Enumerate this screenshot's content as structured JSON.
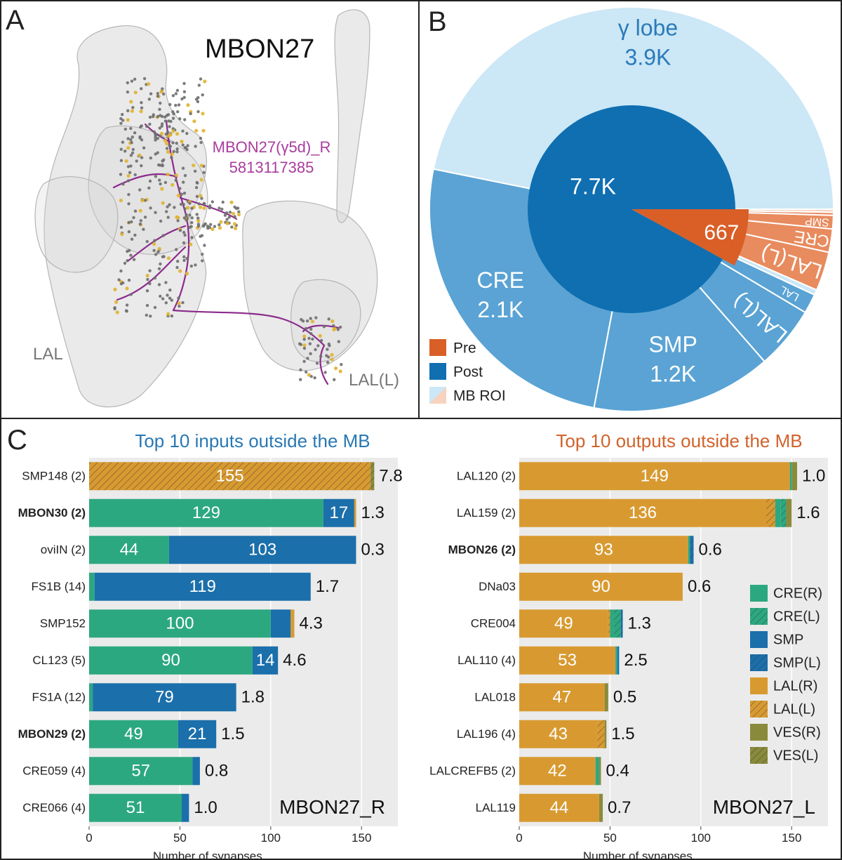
{
  "panel_a": {
    "label": "A",
    "title": "MBON27",
    "neuron_name": "MBON27(γ5d)_R",
    "neuron_id": "5813117385",
    "region_left": "LAL",
    "region_right": "LAL(L)"
  },
  "panel_b": {
    "label": "B",
    "legend": [
      {
        "name": "Pre",
        "color": "#d95f27"
      },
      {
        "name": "Post",
        "color": "#0f6fb1"
      },
      {
        "name": "MB ROI",
        "color": "#cce7f6"
      }
    ]
  },
  "panel_c": {
    "label": "C"
  },
  "chart_data": [
    {
      "type": "pie",
      "inner": [
        {
          "label": "7.7K",
          "value": 7700,
          "color": "#0f6fb1"
        },
        {
          "label": "667",
          "value": 667,
          "color": "#d95f27"
        }
      ],
      "outer": [
        {
          "name": "γ lobe",
          "label": "3.9K",
          "value": 3900,
          "color": "#cce7f6"
        },
        {
          "name": "CRE",
          "label": "2.1K",
          "value": 2100,
          "color": "#5aa3d4"
        },
        {
          "name": "SMP",
          "label": "1.2K",
          "value": 1200,
          "color": "#5aa3d4"
        },
        {
          "name": "LAL(L)",
          "label": "",
          "value": 420,
          "color": "#5aa3d4"
        },
        {
          "name": "LAL",
          "label": "",
          "value": 130,
          "color": "#5aa3d4"
        },
        {
          "name": "",
          "label": "",
          "value": 35,
          "color": "#cce7f6"
        },
        {
          "name": "LAL(L)",
          "label": "",
          "value": 260,
          "color": "#e88b5e"
        },
        {
          "name": "CRE",
          "label": "",
          "value": 155,
          "color": "#e88b5e"
        },
        {
          "name": "SMP",
          "label": "",
          "value": 90,
          "color": "#e88b5e"
        },
        {
          "name": "",
          "label": "",
          "value": 20,
          "color": "#e88b5e"
        },
        {
          "name": "",
          "label": "",
          "value": 20,
          "color": "#f7d3bf"
        }
      ]
    },
    {
      "type": "bar",
      "title": "Top 10 inputs outside the MB",
      "title_color": "#2878b5",
      "corner_label": "MBON27_R",
      "xlabel": "Number of synapses",
      "xlim": [
        0,
        170
      ],
      "xticks": [
        0,
        50,
        100,
        150
      ],
      "rows": [
        {
          "name": "SMP148 (2)",
          "bold": false,
          "right": "7.8",
          "segments": [
            {
              "cat": "LAL(L)",
              "value": 155,
              "label": "155"
            },
            {
              "cat": "VES(L)",
              "value": 2,
              "label": ""
            }
          ]
        },
        {
          "name": "MBON30 (2)",
          "bold": true,
          "right": "1.3",
          "segments": [
            {
              "cat": "CRE(R)",
              "value": 129,
              "label": "129"
            },
            {
              "cat": "SMP",
              "value": 17,
              "label": "17"
            },
            {
              "cat": "LAL(R)",
              "value": 1,
              "label": ""
            }
          ]
        },
        {
          "name": "oviIN (2)",
          "bold": false,
          "right": "0.3",
          "segments": [
            {
              "cat": "CRE(R)",
              "value": 44,
              "label": "44"
            },
            {
              "cat": "SMP",
              "value": 103,
              "label": "103"
            }
          ]
        },
        {
          "name": "FS1B (14)",
          "bold": false,
          "right": "1.7",
          "segments": [
            {
              "cat": "CRE(R)",
              "value": 3,
              "label": ""
            },
            {
              "cat": "SMP",
              "value": 119,
              "label": "119"
            }
          ]
        },
        {
          "name": "SMP152",
          "bold": false,
          "right": "4.3",
          "segments": [
            {
              "cat": "CRE(R)",
              "value": 100,
              "label": "100"
            },
            {
              "cat": "SMP",
              "value": 11,
              "label": ""
            },
            {
              "cat": "LAL(R)",
              "value": 2,
              "label": ""
            }
          ]
        },
        {
          "name": "CL123 (5)",
          "bold": false,
          "right": "4.6",
          "segments": [
            {
              "cat": "CRE(R)",
              "value": 90,
              "label": "90"
            },
            {
              "cat": "SMP",
              "value": 14,
              "label": "14"
            }
          ]
        },
        {
          "name": "FS1A (12)",
          "bold": false,
          "right": "1.8",
          "segments": [
            {
              "cat": "CRE(R)",
              "value": 2,
              "label": ""
            },
            {
              "cat": "SMP",
              "value": 79,
              "label": "79"
            }
          ]
        },
        {
          "name": "MBON29 (2)",
          "bold": true,
          "right": "1.5",
          "segments": [
            {
              "cat": "CRE(R)",
              "value": 49,
              "label": "49"
            },
            {
              "cat": "SMP",
              "value": 21,
              "label": "21"
            }
          ]
        },
        {
          "name": "CRE059 (4)",
          "bold": false,
          "right": "0.8",
          "segments": [
            {
              "cat": "CRE(R)",
              "value": 57,
              "label": "57"
            },
            {
              "cat": "SMP",
              "value": 4,
              "label": ""
            }
          ]
        },
        {
          "name": "CRE066 (4)",
          "bold": false,
          "right": "1.0",
          "segments": [
            {
              "cat": "CRE(R)",
              "value": 51,
              "label": "51"
            },
            {
              "cat": "SMP",
              "value": 4,
              "label": ""
            }
          ]
        }
      ]
    },
    {
      "type": "bar",
      "title": "Top 10 outputs outside the MB",
      "title_color": "#d2622a",
      "corner_label": "MBON27_L",
      "xlabel": "Number of synapses",
      "xlim": [
        0,
        170
      ],
      "xticks": [
        0,
        50,
        100,
        150
      ],
      "rows": [
        {
          "name": "LAL120 (2)",
          "bold": false,
          "right": "1.0",
          "segments": [
            {
              "cat": "LAL(R)",
              "value": 149,
              "label": "149"
            },
            {
              "cat": "CRE(R)",
              "value": 1,
              "label": ""
            },
            {
              "cat": "VES(R)",
              "value": 3,
              "label": ""
            }
          ]
        },
        {
          "name": "LAL159 (2)",
          "bold": false,
          "right": "1.6",
          "segments": [
            {
              "cat": "LAL(R)",
              "value": 136,
              "label": "136"
            },
            {
              "cat": "LAL(L)",
              "value": 5,
              "label": ""
            },
            {
              "cat": "CRE(R)",
              "value": 3,
              "label": ""
            },
            {
              "cat": "CRE(L)",
              "value": 3,
              "label": ""
            },
            {
              "cat": "VES(R)",
              "value": 3,
              "label": ""
            }
          ]
        },
        {
          "name": "MBON26 (2)",
          "bold": true,
          "right": "0.6",
          "segments": [
            {
              "cat": "LAL(R)",
              "value": 93,
              "label": "93"
            },
            {
              "cat": "CRE(R)",
              "value": 1,
              "label": ""
            },
            {
              "cat": "SMP(L)",
              "value": 2,
              "label": ""
            }
          ]
        },
        {
          "name": "DNa03",
          "bold": false,
          "right": "0.6",
          "segments": [
            {
              "cat": "LAL(R)",
              "value": 90,
              "label": "90"
            }
          ]
        },
        {
          "name": "CRE004",
          "bold": false,
          "right": "1.3",
          "segments": [
            {
              "cat": "LAL(R)",
              "value": 49,
              "label": "49"
            },
            {
              "cat": "LAL(L)",
              "value": 1,
              "label": ""
            },
            {
              "cat": "CRE(R)",
              "value": 2,
              "label": ""
            },
            {
              "cat": "CRE(L)",
              "value": 4,
              "label": ""
            },
            {
              "cat": "SMP(L)",
              "value": 1,
              "label": ""
            }
          ]
        },
        {
          "name": "LAL110 (4)",
          "bold": false,
          "right": "2.5",
          "segments": [
            {
              "cat": "LAL(R)",
              "value": 53,
              "label": "53"
            },
            {
              "cat": "CRE(R)",
              "value": 1,
              "label": ""
            },
            {
              "cat": "SMP",
              "value": 1,
              "label": ""
            }
          ]
        },
        {
          "name": "LAL018",
          "bold": false,
          "right": "0.5",
          "segments": [
            {
              "cat": "LAL(R)",
              "value": 47,
              "label": "47"
            },
            {
              "cat": "VES(R)",
              "value": 2,
              "label": ""
            }
          ]
        },
        {
          "name": "LAL196 (4)",
          "bold": false,
          "right": "1.5",
          "segments": [
            {
              "cat": "LAL(R)",
              "value": 43,
              "label": "43"
            },
            {
              "cat": "LAL(L)",
              "value": 4,
              "label": ""
            },
            {
              "cat": "VES(R)",
              "value": 1,
              "label": ""
            }
          ]
        },
        {
          "name": "LALCREFB5 (2)",
          "bold": false,
          "right": "0.4",
          "segments": [
            {
              "cat": "LAL(R)",
              "value": 42,
              "label": "42"
            },
            {
              "cat": "CRE(R)",
              "value": 2,
              "label": ""
            },
            {
              "cat": "VES(R)",
              "value": 1,
              "label": ""
            }
          ]
        },
        {
          "name": "LAL119",
          "bold": false,
          "right": "0.7",
          "segments": [
            {
              "cat": "LAL(R)",
              "value": 44,
              "label": "44"
            },
            {
              "cat": "VES(R)",
              "value": 2,
              "label": ""
            }
          ]
        }
      ]
    }
  ],
  "categories": [
    {
      "name": "CRE(R)",
      "color": "#2ca880",
      "hatch": false
    },
    {
      "name": "CRE(L)",
      "color": "#2ca880",
      "hatch": true
    },
    {
      "name": "SMP",
      "color": "#1b6fab",
      "hatch": false
    },
    {
      "name": "SMP(L)",
      "color": "#1b6fab",
      "hatch": true
    },
    {
      "name": "LAL(R)",
      "color": "#d89a30",
      "hatch": false
    },
    {
      "name": "LAL(L)",
      "color": "#d89a30",
      "hatch": true
    },
    {
      "name": "VES(R)",
      "color": "#8a8a3c",
      "hatch": false
    },
    {
      "name": "VES(L)",
      "color": "#8a8a3c",
      "hatch": true
    }
  ]
}
